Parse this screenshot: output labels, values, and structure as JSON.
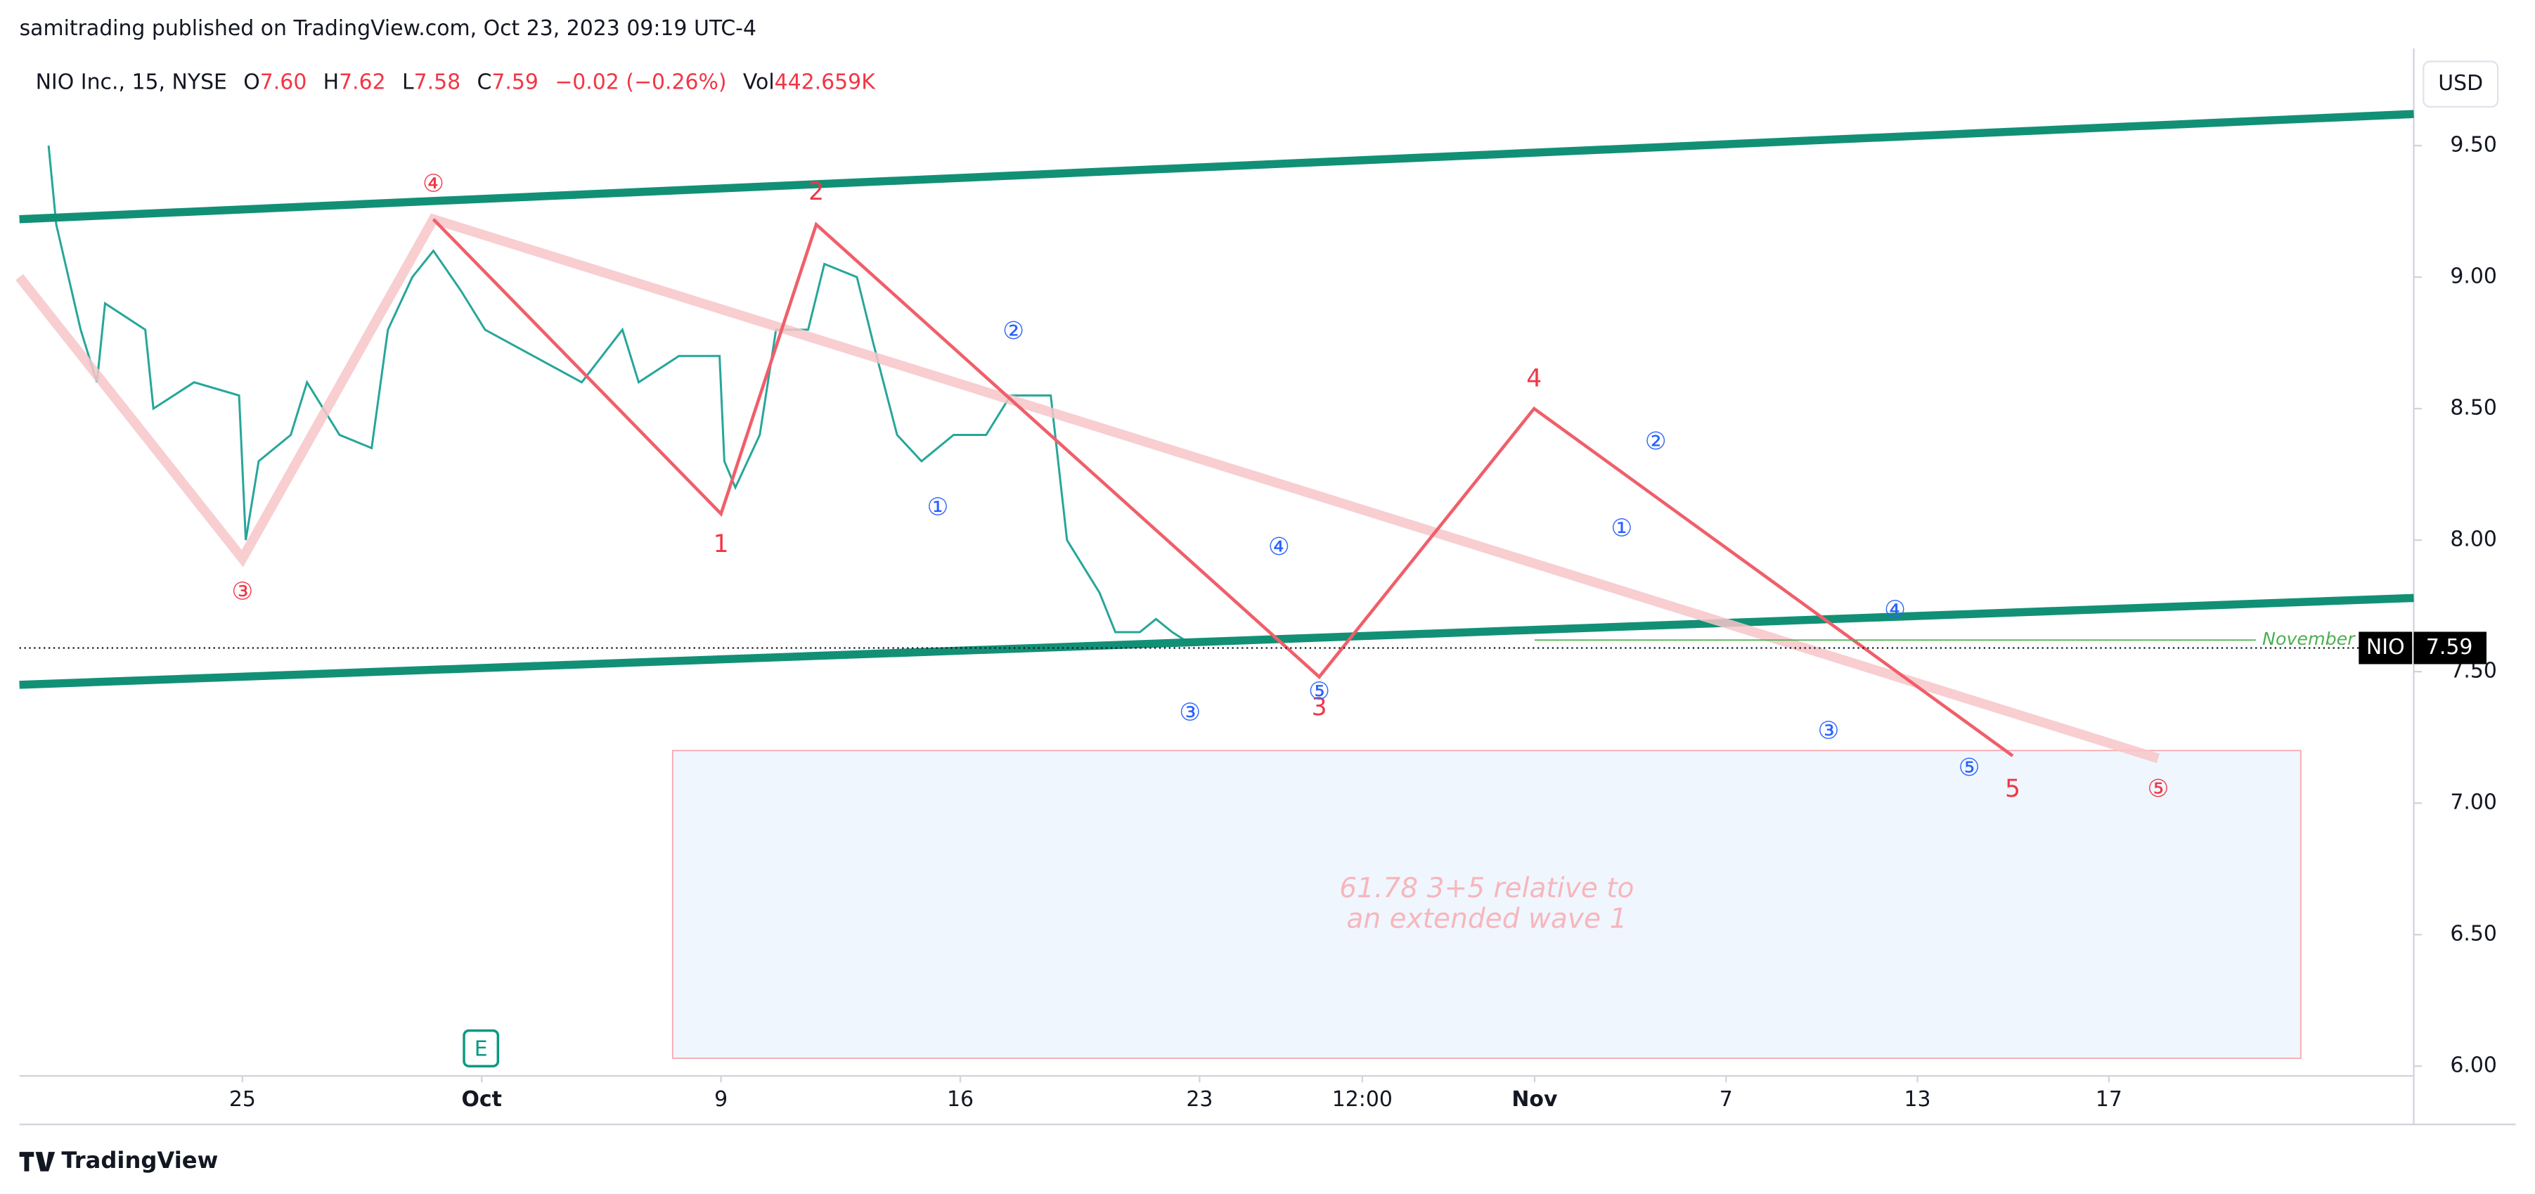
{
  "header": {
    "publisher": "samitrading published on TradingView.com, Oct 23, 2023 09:19 UTC-4",
    "symbol": "NIO Inc., 15, NYSE",
    "o_label": "O",
    "open": "7.60",
    "h_label": "H",
    "high": "7.62",
    "l_label": "L",
    "low": "7.58",
    "c_label": "C",
    "close": "7.59",
    "change": "−0.02 (−0.26%)",
    "vol_label": "Vol",
    "volume": "442.659K",
    "currency": "USD",
    "earnings": "E",
    "footer": "TradingView"
  },
  "chart_data": {
    "type": "line",
    "title": "NIO Inc., 15, NYSE",
    "xlim": [
      -4.66,
      45.37
    ],
    "ylim": [
      5.963,
      9.869
    ],
    "xticks": [
      {
        "value": 0,
        "label": "25"
      },
      {
        "value": 5,
        "label": "Oct"
      },
      {
        "value": 10,
        "label": "9"
      },
      {
        "value": 15,
        "label": "16"
      },
      {
        "value": 20,
        "label": "23"
      },
      {
        "value": 23.4,
        "label": "12:00"
      },
      {
        "value": 27,
        "label": "Nov"
      },
      {
        "value": 31,
        "label": "7"
      },
      {
        "value": 35,
        "label": "13"
      },
      {
        "value": 39,
        "label": "17"
      }
    ],
    "yticks": [
      {
        "value": 6,
        "label": "6.00"
      },
      {
        "value": 6.5,
        "label": "6.50"
      },
      {
        "value": 7,
        "label": "7.00"
      },
      {
        "value": 7.5,
        "label": "7.50"
      },
      {
        "value": 8,
        "label": "8.00"
      },
      {
        "value": 8.5,
        "label": "8.50"
      },
      {
        "value": 9,
        "label": "9.00"
      },
      {
        "value": 9.5,
        "label": "9.50"
      }
    ],
    "series": [
      {
        "name": "NIO",
        "color": "#26a69a",
        "x": [
          -4.05,
          -3.89,
          -3.38,
          -3.04,
          -2.87,
          -2.03,
          -1.86,
          -1.01,
          -0.07,
          0.07,
          0.34,
          1.01,
          1.35,
          2.03,
          2.7,
          3.04,
          3.55,
          3.99,
          4.56,
          5.07,
          6.08,
          7.09,
          7.94,
          8.28,
          9.12,
          9.97,
          10.07,
          10.3,
          10.81,
          11.15,
          11.82,
          12.16,
          12.84,
          13.18,
          13.68,
          14.19,
          14.86,
          15.54,
          16.05,
          16.89,
          17.23,
          17.91,
          18.24,
          18.75,
          19.09,
          19.43,
          19.86
        ],
        "values": [
          9.5,
          9.2,
          8.8,
          8.6,
          8.9,
          8.8,
          8.5,
          8.6,
          8.55,
          8.0,
          8.3,
          8.4,
          8.6,
          8.4,
          8.35,
          8.8,
          9.0,
          9.1,
          8.95,
          8.8,
          8.7,
          8.6,
          8.8,
          8.6,
          8.7,
          8.7,
          8.3,
          8.2,
          8.4,
          8.8,
          8.8,
          9.05,
          9.0,
          8.75,
          8.4,
          8.3,
          8.4,
          8.4,
          8.55,
          8.55,
          8.0,
          7.8,
          7.65,
          7.65,
          7.7,
          7.65,
          7.6
        ]
      }
    ],
    "last_price": {
      "symbol": "NIO",
      "value": 7.59,
      "label": "7.59"
    },
    "trendlines": [
      {
        "color": "#129075",
        "x": [
          -4.66,
          45.37
        ],
        "values": [
          9.22,
          9.62
        ]
      },
      {
        "color": "#129075",
        "x": [
          -4.66,
          45.37
        ],
        "values": [
          7.45,
          7.78
        ]
      },
      {
        "color": "#f7c6c9",
        "x": [
          -4.66,
          0,
          3.99,
          40.03
        ],
        "values": [
          9.0,
          7.93,
          9.22,
          7.17
        ]
      },
      {
        "color": "#ef5f6a",
        "x": [
          3.99,
          10,
          11.99,
          22.5,
          26.99,
          36.99
        ],
        "values": [
          9.22,
          8.1,
          9.2,
          7.48,
          8.5,
          7.18
        ]
      }
    ],
    "level": {
      "label": "November",
      "x": [
        27,
        42.07
      ],
      "value": 7.62,
      "color": "#4caf50"
    },
    "box": {
      "x": [
        8.99,
        43.01
      ],
      "values": [
        6.03,
        7.2
      ],
      "lines": [
        "61.78 3+5 relative to",
        "an extended wave 1"
      ]
    },
    "wave_labels": [
      {
        "label": "④",
        "x": 3.99,
        "value": 9.35,
        "color": "#f23645"
      },
      {
        "label": "③",
        "x": 0,
        "value": 7.8,
        "color": "#f23645"
      },
      {
        "label": "2",
        "x": 11.99,
        "value": 9.32,
        "color": "#f23645"
      },
      {
        "label": "1",
        "x": 10,
        "value": 7.98,
        "color": "#f23645"
      },
      {
        "label": "4",
        "x": 26.99,
        "value": 8.61,
        "color": "#f23645"
      },
      {
        "label": "3",
        "x": 22.5,
        "value": 7.36,
        "color": "#f23645"
      },
      {
        "label": "5",
        "x": 36.99,
        "value": 7.05,
        "color": "#f23645"
      },
      {
        "label": "⑤",
        "x": 40.03,
        "value": 7.05,
        "color": "#f23645"
      },
      {
        "label": "②",
        "x": 16.11,
        "value": 8.79,
        "color": "#2962ff"
      },
      {
        "label": "①",
        "x": 14.53,
        "value": 8.12,
        "color": "#2962ff"
      },
      {
        "label": "④",
        "x": 21.66,
        "value": 7.97,
        "color": "#2962ff"
      },
      {
        "label": "③",
        "x": 19.8,
        "value": 7.34,
        "color": "#2962ff"
      },
      {
        "label": "⑤",
        "x": 22.5,
        "value": 7.42,
        "color": "#2962ff"
      },
      {
        "label": "②",
        "x": 29.53,
        "value": 8.37,
        "color": "#2962ff"
      },
      {
        "label": "①",
        "x": 28.82,
        "value": 8.04,
        "color": "#2962ff"
      },
      {
        "label": "④",
        "x": 34.53,
        "value": 7.73,
        "color": "#2962ff"
      },
      {
        "label": "③",
        "x": 33.14,
        "value": 7.27,
        "color": "#2962ff"
      },
      {
        "label": "⑤",
        "x": 36.08,
        "value": 7.13,
        "color": "#2962ff"
      }
    ]
  }
}
